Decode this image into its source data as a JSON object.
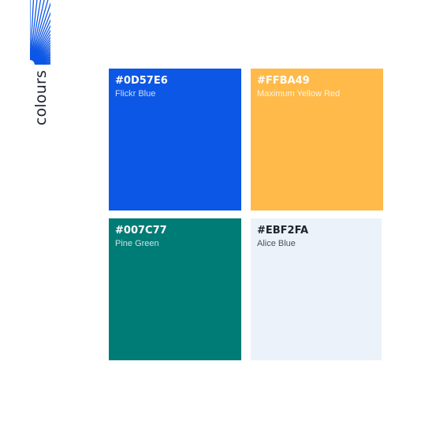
{
  "heading": "colours",
  "swatches": [
    {
      "hex": "#0D57E6",
      "name": "Flickr Blue",
      "color": "#0D57E6",
      "text_color": "#ffffff",
      "name_color": "#cfdcfb"
    },
    {
      "hex": "#FFBA49",
      "name": "Maximum Yellow Red",
      "color": "#FFBA49",
      "text_color": "#ffffff",
      "name_color": "#fff3de"
    },
    {
      "hex": "#007C77",
      "name": "Pine Green",
      "color": "#007C77",
      "text_color": "#ffffff",
      "name_color": "#c8e6e4"
    },
    {
      "hex": "#EBF2FA",
      "name": "Alice Blue",
      "color": "#EBF2FA",
      "text_color": "#1d2430",
      "name_color": "#4a5260"
    }
  ],
  "graphic_color": "#0D57E6"
}
